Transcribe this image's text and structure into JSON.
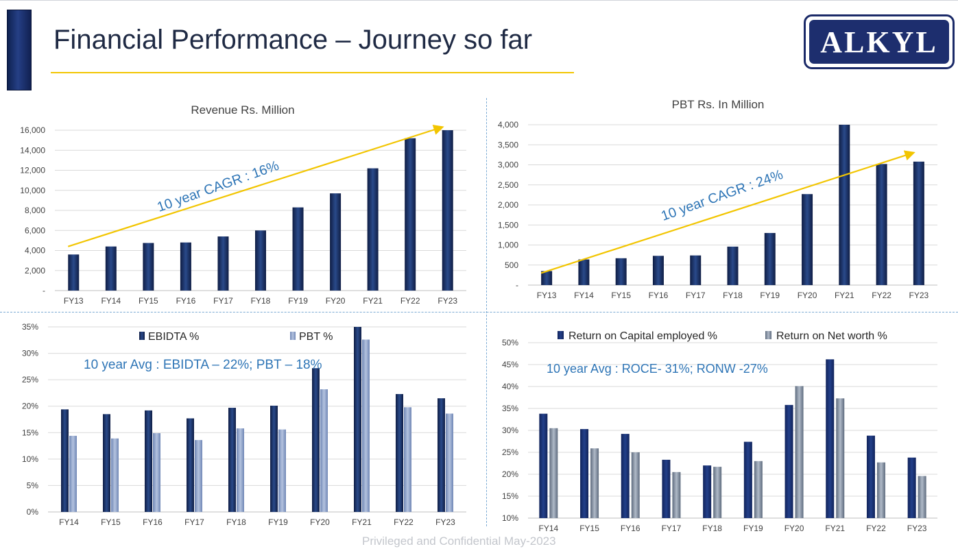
{
  "page": {
    "title": "Financial Performance – Journey so far",
    "footer": "Privileged and Confidential May-2023",
    "logo_text": "ALKYL"
  },
  "colors": {
    "dark_bar": "#1a2e5e",
    "light_bar": "#8ea2c8",
    "grey_bar": "#8b97a8",
    "arrow": "#f2c500",
    "annotation": "#2e75b6",
    "grid": "#d9d9d9",
    "axis_text": "#404040"
  },
  "chart_data": [
    {
      "id": "revenue",
      "type": "bar",
      "title": "Revenue Rs. Million",
      "categories": [
        "FY13",
        "FY14",
        "FY15",
        "FY16",
        "FY17",
        "FY18",
        "FY19",
        "FY20",
        "FY21",
        "FY22",
        "FY23"
      ],
      "series": [
        {
          "values": [
            3600,
            4400,
            4750,
            4800,
            5400,
            6000,
            8300,
            9700,
            12200,
            15200,
            16000
          ]
        }
      ],
      "ylim": [
        0,
        16000
      ],
      "yticks": [
        "-",
        "2,000",
        "4,000",
        "6,000",
        "8,000",
        "10,000",
        "12,000",
        "14,000",
        "16,000"
      ],
      "grid": true,
      "annotation": "10 year CAGR : 16%",
      "trend_arrow": {
        "from": [
          "FY13",
          4400
        ],
        "to": [
          "FY23",
          16300
        ]
      }
    },
    {
      "id": "pbt",
      "type": "bar",
      "title": "PBT Rs. In Million",
      "categories": [
        "FY13",
        "FY14",
        "FY15",
        "FY16",
        "FY17",
        "FY18",
        "FY19",
        "FY20",
        "FY21",
        "FY22",
        "FY23"
      ],
      "series": [
        {
          "values": [
            350,
            640,
            670,
            730,
            740,
            960,
            1300,
            2270,
            4000,
            3020,
            3080
          ]
        }
      ],
      "ylim": [
        0,
        4000
      ],
      "yticks": [
        "-",
        "500",
        "1,000",
        "1,500",
        "2,000",
        "2,500",
        "3,000",
        "3,500",
        "4,000"
      ],
      "grid": true,
      "annotation": "10 year CAGR : 24%",
      "trend_arrow": {
        "from": [
          "FY13",
          300
        ],
        "to": [
          "FY23",
          3300
        ]
      }
    },
    {
      "id": "margins",
      "type": "bar",
      "categories": [
        "FY14",
        "FY15",
        "FY16",
        "FY17",
        "FY18",
        "FY19",
        "FY20",
        "FY21",
        "FY22",
        "FY23"
      ],
      "series": [
        {
          "name": "EBIDTA %",
          "values": [
            19.4,
            18.5,
            19.2,
            17.7,
            19.7,
            20.1,
            27.2,
            35.0,
            22.3,
            21.5
          ]
        },
        {
          "name": "PBT %",
          "values": [
            14.4,
            13.9,
            14.9,
            13.6,
            15.8,
            15.6,
            23.2,
            32.6,
            19.8,
            18.6
          ]
        }
      ],
      "ylim": [
        0,
        35
      ],
      "yticks": [
        "0%",
        "5%",
        "10%",
        "15%",
        "20%",
        "25%",
        "30%",
        "35%"
      ],
      "grid": true,
      "legend": "top",
      "annotation": "10 year Avg : EBIDTA – 22%; PBT – 18%"
    },
    {
      "id": "returns",
      "type": "bar",
      "categories": [
        "FY14",
        "FY15",
        "FY16",
        "FY17",
        "FY18",
        "FY19",
        "FY20",
        "FY21",
        "FY22",
        "FY23"
      ],
      "series": [
        {
          "name": "Return on Capital employed %",
          "values": [
            33.8,
            30.3,
            29.2,
            23.3,
            22.0,
            27.4,
            35.8,
            46.2,
            28.8,
            23.8
          ]
        },
        {
          "name": "Return on Net worth %",
          "values": [
            30.5,
            25.9,
            25.0,
            20.5,
            21.7,
            23.0,
            40.1,
            37.3,
            22.7,
            19.6
          ]
        }
      ],
      "ylim": [
        10,
        50
      ],
      "yticks": [
        "10%",
        "15%",
        "20%",
        "25%",
        "30%",
        "35%",
        "40%",
        "45%",
        "50%"
      ],
      "grid": true,
      "legend": "top",
      "annotation": "10 year Avg : ROCE- 31%; RONW -27%"
    }
  ]
}
